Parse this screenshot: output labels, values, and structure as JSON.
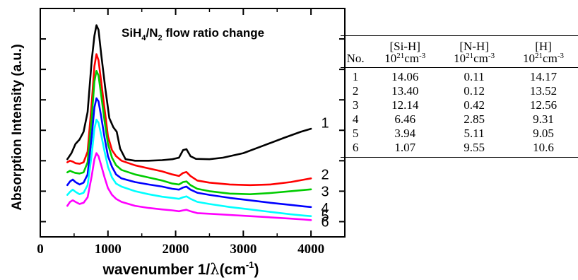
{
  "chart_data": {
    "type": "line",
    "title": "SiH4/N2 flow ratio change",
    "title_parts": {
      "pre": "SiH",
      "sub1": "4",
      "mid": "/N",
      "sub2": "2",
      "post": " flow ratio change"
    },
    "xlabel": "wavenumber 1/λ(cm-1)",
    "xlabel_parts": {
      "pre": "wavenumber 1/",
      "lambda": "λ",
      "mid": "(cm",
      "sup": "-1",
      "post": ")"
    },
    "ylabel": "Absorption Intensity (a.u.)",
    "xlim": [
      0,
      4500
    ],
    "xticks": [
      "0",
      "1000",
      "2000",
      "3000",
      "4000"
    ],
    "xtick_values": [
      0,
      1000,
      2000,
      3000,
      4000
    ],
    "y_tick_labels_shown": false,
    "series": [
      {
        "name": "1",
        "color": "#000000",
        "points": [
          [
            400,
            1.05
          ],
          [
            460,
            1.25
          ],
          [
            520,
            1.55
          ],
          [
            580,
            1.7
          ],
          [
            640,
            1.95
          ],
          [
            700,
            2.6
          ],
          [
            760,
            4.3
          ],
          [
            800,
            5.1
          ],
          [
            830,
            5.45
          ],
          [
            860,
            5.3
          ],
          [
            900,
            4.5
          ],
          [
            960,
            3.4
          ],
          [
            1020,
            2.4
          ],
          [
            1080,
            2.1
          ],
          [
            1130,
            1.95
          ],
          [
            1180,
            1.4
          ],
          [
            1260,
            1.05
          ],
          [
            1400,
            1.0
          ],
          [
            1600,
            1.0
          ],
          [
            1800,
            1.02
          ],
          [
            1950,
            1.05
          ],
          [
            2050,
            1.1
          ],
          [
            2110,
            1.35
          ],
          [
            2160,
            1.38
          ],
          [
            2220,
            1.15
          ],
          [
            2300,
            1.06
          ],
          [
            2500,
            1.05
          ],
          [
            2700,
            1.1
          ],
          [
            3000,
            1.25
          ],
          [
            3300,
            1.5
          ],
          [
            3600,
            1.75
          ],
          [
            3850,
            1.95
          ],
          [
            4000,
            2.05
          ]
        ]
      },
      {
        "name": "2",
        "color": "#ff0000",
        "points": [
          [
            400,
            0.95
          ],
          [
            440,
            1.0
          ],
          [
            480,
            0.97
          ],
          [
            520,
            0.92
          ],
          [
            580,
            0.9
          ],
          [
            640,
            0.95
          ],
          [
            700,
            1.3
          ],
          [
            760,
            2.9
          ],
          [
            800,
            4.1
          ],
          [
            830,
            4.5
          ],
          [
            860,
            4.3
          ],
          [
            900,
            3.6
          ],
          [
            950,
            2.7
          ],
          [
            1000,
            1.8
          ],
          [
            1060,
            1.35
          ],
          [
            1120,
            1.15
          ],
          [
            1200,
            1.0
          ],
          [
            1400,
            0.85
          ],
          [
            1600,
            0.75
          ],
          [
            1800,
            0.65
          ],
          [
            1950,
            0.55
          ],
          [
            2050,
            0.5
          ],
          [
            2110,
            0.6
          ],
          [
            2160,
            0.63
          ],
          [
            2220,
            0.5
          ],
          [
            2320,
            0.35
          ],
          [
            2500,
            0.28
          ],
          [
            2800,
            0.22
          ],
          [
            3100,
            0.2
          ],
          [
            3400,
            0.22
          ],
          [
            3700,
            0.3
          ],
          [
            3900,
            0.38
          ],
          [
            4000,
            0.42
          ]
        ]
      },
      {
        "name": "3",
        "color": "#00cc00",
        "points": [
          [
            400,
            0.62
          ],
          [
            440,
            0.67
          ],
          [
            480,
            0.63
          ],
          [
            520,
            0.6
          ],
          [
            580,
            0.58
          ],
          [
            640,
            0.62
          ],
          [
            700,
            0.95
          ],
          [
            760,
            2.4
          ],
          [
            800,
            3.6
          ],
          [
            830,
            3.95
          ],
          [
            860,
            3.8
          ],
          [
            900,
            3.15
          ],
          [
            950,
            2.3
          ],
          [
            1000,
            1.55
          ],
          [
            1060,
            1.1
          ],
          [
            1120,
            0.85
          ],
          [
            1200,
            0.7
          ],
          [
            1400,
            0.55
          ],
          [
            1600,
            0.45
          ],
          [
            1800,
            0.35
          ],
          [
            1950,
            0.25
          ],
          [
            2050,
            0.22
          ],
          [
            2110,
            0.3
          ],
          [
            2160,
            0.32
          ],
          [
            2220,
            0.2
          ],
          [
            2320,
            0.08
          ],
          [
            2500,
            0.0
          ],
          [
            2800,
            -0.08
          ],
          [
            3100,
            -0.1
          ],
          [
            3400,
            -0.06
          ],
          [
            3700,
            0.0
          ],
          [
            3900,
            0.04
          ],
          [
            4000,
            0.06
          ]
        ]
      },
      {
        "name": "4",
        "color": "#0000ff",
        "points": [
          [
            400,
            0.2
          ],
          [
            440,
            0.32
          ],
          [
            480,
            0.38
          ],
          [
            520,
            0.3
          ],
          [
            580,
            0.22
          ],
          [
            640,
            0.28
          ],
          [
            700,
            0.55
          ],
          [
            760,
            1.8
          ],
          [
            800,
            2.75
          ],
          [
            830,
            3.05
          ],
          [
            860,
            2.95
          ],
          [
            900,
            2.45
          ],
          [
            950,
            1.75
          ],
          [
            1000,
            1.15
          ],
          [
            1060,
            0.8
          ],
          [
            1120,
            0.55
          ],
          [
            1200,
            0.42
          ],
          [
            1400,
            0.3
          ],
          [
            1600,
            0.22
          ],
          [
            1800,
            0.15
          ],
          [
            1950,
            0.08
          ],
          [
            2050,
            0.05
          ],
          [
            2110,
            0.12
          ],
          [
            2160,
            0.15
          ],
          [
            2220,
            0.05
          ],
          [
            2320,
            -0.05
          ],
          [
            2500,
            -0.12
          ],
          [
            2800,
            -0.22
          ],
          [
            3100,
            -0.3
          ],
          [
            3400,
            -0.38
          ],
          [
            3700,
            -0.45
          ],
          [
            3900,
            -0.5
          ],
          [
            4000,
            -0.52
          ]
        ]
      },
      {
        "name": "5",
        "color": "#00ffff",
        "points": [
          [
            400,
            -0.12
          ],
          [
            440,
            -0.02
          ],
          [
            480,
            0.05
          ],
          [
            520,
            -0.02
          ],
          [
            580,
            -0.1
          ],
          [
            640,
            -0.05
          ],
          [
            700,
            0.2
          ],
          [
            760,
            1.2
          ],
          [
            800,
            2.05
          ],
          [
            830,
            2.35
          ],
          [
            860,
            2.25
          ],
          [
            900,
            1.85
          ],
          [
            950,
            1.3
          ],
          [
            1000,
            0.8
          ],
          [
            1060,
            0.45
          ],
          [
            1120,
            0.25
          ],
          [
            1200,
            0.15
          ],
          [
            1400,
            0.0
          ],
          [
            1600,
            -0.1
          ],
          [
            1800,
            -0.18
          ],
          [
            1950,
            -0.22
          ],
          [
            2050,
            -0.25
          ],
          [
            2110,
            -0.2
          ],
          [
            2160,
            -0.17
          ],
          [
            2220,
            -0.25
          ],
          [
            2320,
            -0.35
          ],
          [
            2500,
            -0.42
          ],
          [
            2800,
            -0.52
          ],
          [
            3100,
            -0.6
          ],
          [
            3400,
            -0.68
          ],
          [
            3700,
            -0.76
          ],
          [
            3900,
            -0.8
          ],
          [
            4000,
            -0.82
          ]
        ]
      },
      {
        "name": "6",
        "color": "#ff00ff",
        "points": [
          [
            400,
            -0.48
          ],
          [
            440,
            -0.35
          ],
          [
            480,
            -0.3
          ],
          [
            520,
            -0.35
          ],
          [
            580,
            -0.42
          ],
          [
            640,
            -0.38
          ],
          [
            700,
            -0.2
          ],
          [
            760,
            0.5
          ],
          [
            800,
            1.05
          ],
          [
            830,
            1.25
          ],
          [
            860,
            1.15
          ],
          [
            900,
            0.85
          ],
          [
            950,
            0.45
          ],
          [
            1000,
            0.1
          ],
          [
            1060,
            -0.12
          ],
          [
            1120,
            -0.25
          ],
          [
            1200,
            -0.35
          ],
          [
            1400,
            -0.48
          ],
          [
            1600,
            -0.55
          ],
          [
            1800,
            -0.6
          ],
          [
            1950,
            -0.63
          ],
          [
            2050,
            -0.66
          ],
          [
            2110,
            -0.63
          ],
          [
            2160,
            -0.61
          ],
          [
            2220,
            -0.66
          ],
          [
            2320,
            -0.72
          ],
          [
            2500,
            -0.74
          ],
          [
            2800,
            -0.78
          ],
          [
            3100,
            -0.82
          ],
          [
            3400,
            -0.86
          ],
          [
            3700,
            -0.9
          ],
          [
            3900,
            -0.93
          ],
          [
            4000,
            -0.95
          ]
        ]
      }
    ],
    "curve_labels": [
      {
        "text": "1",
        "x": 4150,
        "y": 2.25
      },
      {
        "text": "2",
        "x": 4150,
        "y": 0.55
      },
      {
        "text": "3",
        "x": 4150,
        "y": 0.0
      },
      {
        "text": "4",
        "x": 4150,
        "y": -0.55
      },
      {
        "text": "5",
        "x": 4150,
        "y": -0.8
      },
      {
        "text": "6",
        "x": 4150,
        "y": -1.0
      }
    ]
  },
  "table": {
    "columns": [
      {
        "label": "No.",
        "unit": null
      },
      {
        "label": "[Si-H]",
        "unit": {
          "base": "10",
          "sup1": "21",
          "mid": "cm",
          "sup2": "-3"
        }
      },
      {
        "label": "[N-H]",
        "unit": {
          "base": "10",
          "sup1": "21",
          "mid": "cm",
          "sup2": "-3"
        }
      },
      {
        "label": "[H]",
        "unit": {
          "base": "10",
          "sup1": "21",
          "mid": "cm",
          "sup2": "-3"
        }
      }
    ],
    "rows": [
      [
        "1",
        "14.06",
        "0.11",
        "14.17"
      ],
      [
        "2",
        "13.40",
        "0.12",
        "13.52"
      ],
      [
        "3",
        "12.14",
        "0.42",
        "12.56"
      ],
      [
        "4",
        "6.46",
        "2.85",
        "9.31"
      ],
      [
        "5",
        "3.94",
        "5.11",
        "9.05"
      ],
      [
        "6",
        "1.07",
        "9.55",
        "10.6"
      ]
    ]
  }
}
